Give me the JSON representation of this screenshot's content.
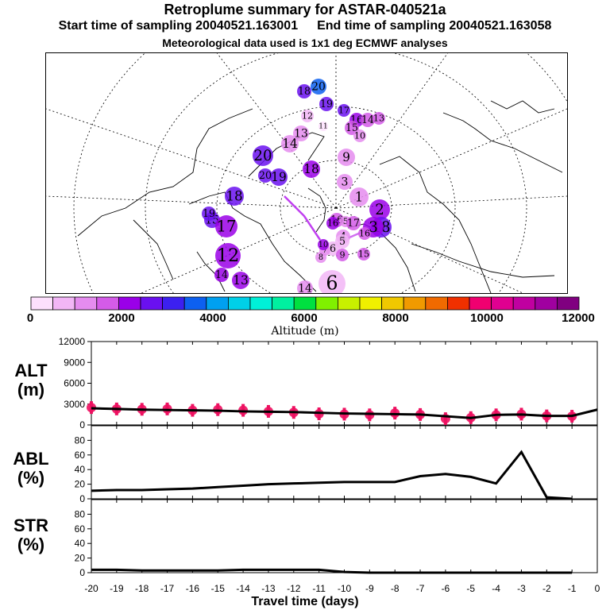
{
  "header": {
    "title": "Retroplume summary for ASTAR-040521a",
    "start_time": "Start time of sampling 20040521.163001",
    "end_time": "End time of sampling 20040521.163058",
    "met_data": "Meteorological data used is 1x1 deg ECMWF analyses"
  },
  "map": {
    "markers": [
      {
        "label": "20",
        "altitude": 3400
      },
      {
        "label": "18",
        "altitude": 2600
      },
      {
        "label": "19",
        "altitude": 2800
      },
      {
        "label": "17",
        "altitude": 2600
      },
      {
        "label": "16",
        "altitude": 2200
      },
      {
        "label": "15",
        "altitude": 1900
      },
      {
        "label": "14",
        "altitude": 1900
      },
      {
        "label": "13",
        "altitude": 1600
      },
      {
        "label": "12",
        "altitude": 600
      },
      {
        "label": "11",
        "altitude": 300
      },
      {
        "label": "10",
        "altitude": 1400
      },
      {
        "label": "14",
        "altitude": 1400
      },
      {
        "label": "13",
        "altitude": 1100
      },
      {
        "label": "20",
        "altitude": 2400
      },
      {
        "label": "9",
        "altitude": 1200
      },
      {
        "label": "18",
        "altitude": 2300
      },
      {
        "label": "19",
        "altitude": 2700
      },
      {
        "label": "20",
        "altitude": 2500
      },
      {
        "label": "3",
        "altitude": 1200
      },
      {
        "label": "1",
        "altitude": 1000
      },
      {
        "label": "2",
        "altitude": 2100
      },
      {
        "label": "16",
        "altitude": 1800
      },
      {
        "label": "18",
        "altitude": 2600
      },
      {
        "label": "3",
        "altitude": 2200
      },
      {
        "label": "5",
        "altitude": 1000
      },
      {
        "label": "17",
        "altitude": 1600
      },
      {
        "label": "16",
        "altitude": 2000
      },
      {
        "label": "4",
        "altitude": 1200
      },
      {
        "label": "5",
        "altitude": 900
      },
      {
        "label": "6",
        "altitude": 900
      },
      {
        "label": "7",
        "altitude": 1100
      },
      {
        "label": "8",
        "altitude": 1300
      },
      {
        "label": "9",
        "altitude": 1700
      },
      {
        "label": "10",
        "altitude": 2200
      },
      {
        "label": "15",
        "altitude": 1600
      },
      {
        "label": "16",
        "altitude": 1900
      },
      {
        "label": "15",
        "altitude": 2700
      },
      {
        "label": "17",
        "altitude": 2300
      },
      {
        "label": "12",
        "altitude": 2100
      },
      {
        "label": "14",
        "altitude": 2000
      },
      {
        "label": "13",
        "altitude": 2100
      },
      {
        "label": "14",
        "altitude": 1300
      },
      {
        "label": "6",
        "altitude": 800
      },
      {
        "label": "19",
        "altitude": 2400
      },
      {
        "label": "18",
        "altitude": 2500
      }
    ]
  },
  "colorbar": {
    "title": "Altitude (m)",
    "tick_labels": [
      "0",
      "2000",
      "4000",
      "6000",
      "8000",
      "10000",
      "12000"
    ],
    "colors": [
      "#fde0fd",
      "#f2b6f6",
      "#e58cef",
      "#d45be8",
      "#9a00e8",
      "#6a10f0",
      "#3c20f0",
      "#0d60f0",
      "#00a0f0",
      "#00d0e8",
      "#00f0d8",
      "#00f0a0",
      "#00e040",
      "#80f000",
      "#c8f000",
      "#f0f000",
      "#f0c800",
      "#f09a00",
      "#f06a00",
      "#f03000",
      "#f00070",
      "#e00090",
      "#c000a0",
      "#a000a0",
      "#800080"
    ]
  },
  "panels": {
    "alt_label": "ALT\n(m)",
    "abl_label": "ABL\n(%)",
    "str_label": "STR\n(%)"
  },
  "chart_data": [
    {
      "type": "line",
      "title": "ALT (m)",
      "x": [
        -20,
        -19,
        -18,
        -17,
        -16,
        -15,
        -14,
        -13,
        -12,
        -11,
        -10,
        -9,
        -8,
        -7,
        -6,
        -5,
        -4,
        -3,
        -2,
        -1,
        0
      ],
      "values": [
        2400,
        2300,
        2200,
        2150,
        2100,
        2050,
        1950,
        1900,
        1850,
        1750,
        1650,
        1600,
        1550,
        1500,
        1250,
        1000,
        1450,
        1500,
        1300,
        1300,
        2200
      ],
      "ylim": [
        0,
        12000
      ],
      "yticks": [
        "0",
        "3000",
        "6000",
        "9000",
        "12000"
      ],
      "markers": [
        {
          "x": -20,
          "y": 2500
        },
        {
          "x": -19,
          "y": 2300
        },
        {
          "x": -18,
          "y": 2250
        },
        {
          "x": -17,
          "y": 2300
        },
        {
          "x": -16,
          "y": 2100
        },
        {
          "x": -15,
          "y": 2200
        },
        {
          "x": -14,
          "y": 2100
        },
        {
          "x": -13,
          "y": 1950
        },
        {
          "x": -12,
          "y": 1800
        },
        {
          "x": -11,
          "y": 1600
        },
        {
          "x": -10,
          "y": 1550
        },
        {
          "x": -9,
          "y": 1450
        },
        {
          "x": -8,
          "y": 1700
        },
        {
          "x": -7,
          "y": 1500
        },
        {
          "x": -6,
          "y": 900
        },
        {
          "x": -5,
          "y": 1050
        },
        {
          "x": -4,
          "y": 1450
        },
        {
          "x": -3,
          "y": 1550
        },
        {
          "x": -2,
          "y": 1300
        },
        {
          "x": -1,
          "y": 1250
        }
      ],
      "xlabel": "Travel time (days)"
    },
    {
      "type": "line",
      "title": "ABL (%)",
      "x": [
        -20,
        -19,
        -18,
        -17,
        -16,
        -15,
        -14,
        -13,
        -12,
        -11,
        -10,
        -9,
        -8,
        -7,
        -6,
        -5,
        -4,
        -3,
        -2,
        -1
      ],
      "values": [
        11,
        12,
        12,
        13,
        14,
        16,
        18,
        20,
        21,
        22,
        23,
        23,
        23,
        31,
        34,
        30,
        21,
        64,
        2,
        0
      ],
      "ylim": [
        0,
        100
      ],
      "yticks": [
        "0",
        "20",
        "40",
        "60",
        "80"
      ],
      "xlabel": "Travel time (days)"
    },
    {
      "type": "line",
      "title": "STR (%)",
      "x": [
        -20,
        -19,
        -18,
        -17,
        -16,
        -15,
        -14,
        -13,
        -12,
        -11,
        -10,
        -9,
        -8,
        -7,
        -6,
        -5,
        -4,
        -3,
        -2,
        -1
      ],
      "values": [
        4,
        4,
        3,
        3,
        3,
        3,
        4,
        4,
        4,
        4,
        1,
        0,
        0,
        0,
        0,
        0,
        0,
        0,
        0,
        0
      ],
      "ylim": [
        0,
        100
      ],
      "yticks": [
        "0",
        "20",
        "40",
        "60",
        "80"
      ],
      "xlabel": "Travel time (days)",
      "xticks": [
        "-20",
        "-19",
        "-18",
        "-17",
        "-16",
        "-15",
        "-14",
        "-13",
        "-12",
        "-11",
        "-10",
        "-9",
        "-8",
        "-7",
        "-6",
        "-5",
        "-4",
        "-3",
        "-2",
        "-1",
        "0"
      ]
    }
  ]
}
